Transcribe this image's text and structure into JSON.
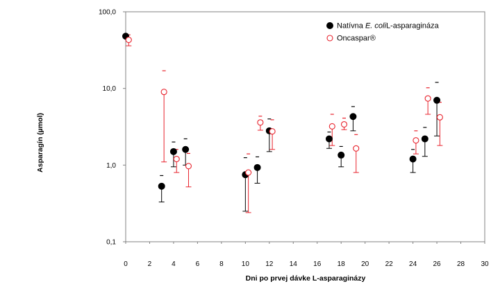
{
  "chart_data": {
    "type": "scatter",
    "title": "",
    "xlabel": "Dni po prvej dávke L-asparaginázy",
    "ylabel": "Asparagín (µmol)",
    "x_ticks": [
      0,
      2,
      4,
      6,
      8,
      10,
      12,
      14,
      16,
      18,
      20,
      22,
      24,
      26,
      28,
      30
    ],
    "y_ticks": [
      0.1,
      1,
      10,
      100
    ],
    "y_tick_labels": [
      "0,1",
      "1,0",
      "10,0",
      "100,0"
    ],
    "xlim": [
      0,
      30
    ],
    "ylim": [
      0.1,
      100
    ],
    "y_scale": "log",
    "grid": false,
    "legend_position": "top-right",
    "series": [
      {
        "name_parts": [
          "Natívna ",
          "E. coli",
          "L-asparagináza"
        ],
        "marker": "filled-circle",
        "color": "#000000",
        "points": [
          {
            "x": 0.0,
            "y": 48,
            "low": null,
            "high": null
          },
          {
            "x": 3.0,
            "y": 0.53,
            "low": 0.33,
            "high": 0.73
          },
          {
            "x": 4.0,
            "y": 1.5,
            "low": 0.95,
            "high": 2.0
          },
          {
            "x": 5.0,
            "y": 1.6,
            "low": 1.0,
            "high": 2.2
          },
          {
            "x": 10.0,
            "y": 0.75,
            "low": 0.25,
            "high": 1.25
          },
          {
            "x": 11.0,
            "y": 0.93,
            "low": 0.58,
            "high": 1.28
          },
          {
            "x": 12.0,
            "y": 2.8,
            "low": 1.5,
            "high": 4.0
          },
          {
            "x": 17.0,
            "y": 2.2,
            "low": 1.65,
            "high": 2.7
          },
          {
            "x": 18.0,
            "y": 1.35,
            "low": 0.95,
            "high": 1.75
          },
          {
            "x": 19.0,
            "y": 4.3,
            "low": 2.8,
            "high": 5.8
          },
          {
            "x": 24.0,
            "y": 1.2,
            "low": 0.8,
            "high": 1.6
          },
          {
            "x": 25.0,
            "y": 2.2,
            "low": 1.3,
            "high": 3.1
          },
          {
            "x": 26.0,
            "y": 7.0,
            "low": 2.4,
            "high": 12.0
          }
        ]
      },
      {
        "name": "Oncaspar®",
        "marker": "open-circle",
        "color": "#e8212b",
        "points": [
          {
            "x": 0.25,
            "y": 43,
            "low": 36,
            "high": 50
          },
          {
            "x": 3.2,
            "y": 9.0,
            "low": 1.1,
            "high": 17.0
          },
          {
            "x": 4.25,
            "y": 1.2,
            "low": 0.8,
            "high": 1.6
          },
          {
            "x": 5.25,
            "y": 0.97,
            "low": 0.52,
            "high": 1.42
          },
          {
            "x": 10.25,
            "y": 0.8,
            "low": 0.24,
            "high": 1.4
          },
          {
            "x": 11.25,
            "y": 3.6,
            "low": 2.85,
            "high": 4.35
          },
          {
            "x": 12.25,
            "y": 2.75,
            "low": 1.6,
            "high": 3.9
          },
          {
            "x": 17.25,
            "y": 3.2,
            "low": 1.8,
            "high": 4.6
          },
          {
            "x": 18.25,
            "y": 3.4,
            "low": 2.9,
            "high": 4.1
          },
          {
            "x": 19.25,
            "y": 1.65,
            "low": 0.8,
            "high": 2.5
          },
          {
            "x": 24.25,
            "y": 2.1,
            "low": 1.4,
            "high": 2.8
          },
          {
            "x": 25.25,
            "y": 7.4,
            "low": 4.6,
            "high": 10.2
          },
          {
            "x": 26.25,
            "y": 4.2,
            "low": 1.8,
            "high": 6.6
          }
        ]
      }
    ]
  }
}
